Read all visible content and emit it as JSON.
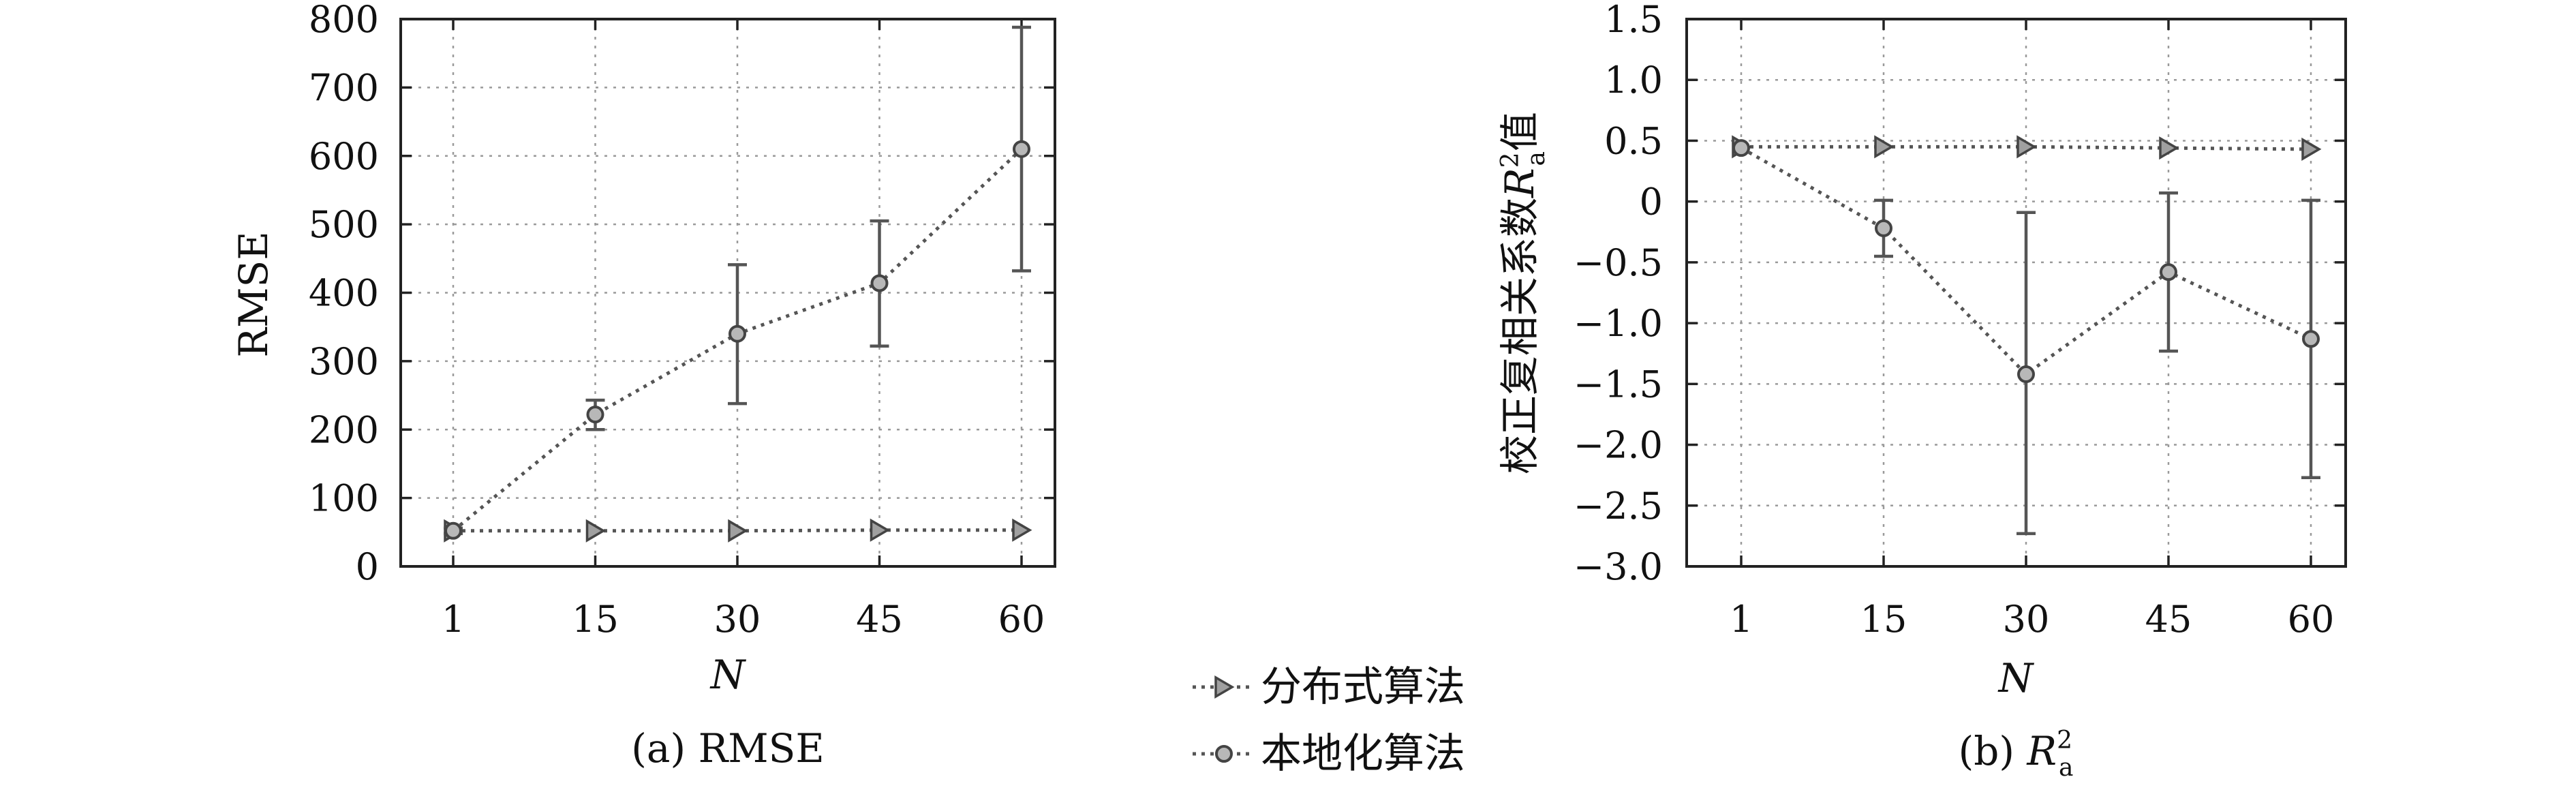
{
  "chart_data": [
    {
      "type": "line",
      "caption": "(a) RMSE",
      "xlabel": "N",
      "ylabel": "RMSE",
      "categories": [
        "1",
        "15",
        "30",
        "45",
        "60"
      ],
      "ylim": [
        0,
        800
      ],
      "yticks": [
        "0",
        "100",
        "200",
        "300",
        "400",
        "500",
        "600",
        "700",
        "800"
      ],
      "grid": true,
      "series": [
        {
          "name": "分布式算法",
          "marker": "triangle",
          "values": [
            52,
            52,
            52,
            53,
            53
          ],
          "error_low": [
            52,
            52,
            52,
            53,
            53
          ],
          "error_high": [
            52,
            52,
            52,
            53,
            53
          ]
        },
        {
          "name": "本地化算法",
          "marker": "circle",
          "values": [
            52,
            222,
            340,
            414,
            610
          ],
          "error_low": [
            48,
            200,
            238,
            322,
            432
          ],
          "error_high": [
            56,
            243,
            441,
            505,
            788
          ]
        }
      ]
    },
    {
      "type": "line",
      "caption_prefix": "(b) ",
      "caption_sym": "R",
      "caption_sup": "2",
      "caption_sub": "a",
      "xlabel": "N",
      "ylabel_text": "校正复相关系数",
      "ylabel_sym": "R",
      "ylabel_sup": "2",
      "ylabel_sub": "a",
      "ylabel_suffix": "值",
      "categories": [
        "1",
        "15",
        "30",
        "45",
        "60"
      ],
      "ylim": [
        -3.0,
        1.5
      ],
      "yticks": [
        "1.5",
        "1.0",
        "0.5",
        "0",
        "−0.5",
        "−1.0",
        "−1.5",
        "−2.0",
        "−2.5",
        "−3.0"
      ],
      "grid": true,
      "series": [
        {
          "name": "分布式算法",
          "marker": "triangle",
          "values": [
            0.45,
            0.45,
            0.45,
            0.44,
            0.43
          ],
          "error_low": [
            0.45,
            0.45,
            0.45,
            0.44,
            0.43
          ],
          "error_high": [
            0.45,
            0.45,
            0.45,
            0.44,
            0.43
          ]
        },
        {
          "name": "本地化算法",
          "marker": "circle",
          "values": [
            0.44,
            -0.22,
            -1.42,
            -0.58,
            -1.13
          ],
          "error_low": [
            0.44,
            -0.45,
            -2.73,
            -1.23,
            -2.27
          ],
          "error_high": [
            0.44,
            0.01,
            -0.09,
            0.07,
            0.01
          ]
        }
      ]
    }
  ],
  "legend": {
    "placement": "bottom-center",
    "entries": [
      {
        "label": "分布式算法",
        "marker": "triangle"
      },
      {
        "label": "本地化算法",
        "marker": "circle"
      }
    ]
  },
  "colors": {
    "line": "#555555",
    "marker_fill": "#b8b8b8",
    "frame": "#222222",
    "grid": "#9a9a9a"
  }
}
